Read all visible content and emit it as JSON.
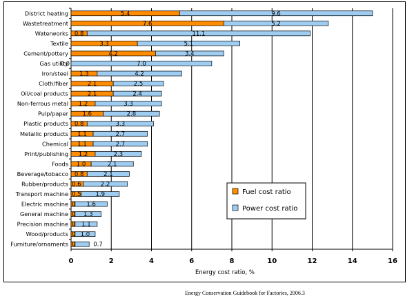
{
  "chart_data": {
    "type": "bar",
    "stacked": true,
    "orientation": "horizontal",
    "categories": [
      "District heating",
      "Wastetreatment",
      "Waterworks",
      "Textile",
      "Cement/pottery",
      "Gas utility",
      "Iron/steel",
      "Cloth/fiber",
      "Oil/coal products",
      "Non-ferrous metal",
      "Pulp/paper",
      "Plastic products",
      "Metallic products",
      "Chemical",
      "Print/publishing",
      "Foods",
      "Beverage/tobacco",
      "Rubber/products",
      "Transport machine",
      "Electric machine",
      "General machine",
      "Precision machine",
      "Wood/products",
      "Furniture/ornaments"
    ],
    "series": [
      {
        "name": "Fuel cost ratio",
        "color": "#ff8c00",
        "values": [
          5.4,
          7.6,
          0.8,
          3.3,
          4.2,
          0.0,
          1.3,
          2.1,
          2.1,
          1.2,
          1.6,
          0.8,
          1.1,
          1.1,
          1.2,
          1.0,
          0.8,
          0.6,
          0.5,
          0.2,
          0.2,
          0.2,
          0.2,
          0.2
        ],
        "labels": [
          "5.4",
          "7.6",
          "0.8",
          "3.3",
          "4.2",
          "0.0",
          "1.3",
          "2.1",
          "2.1",
          "1.2",
          "1.6",
          "0.8",
          "1.1",
          "1.1",
          "1.2",
          "1.0",
          "0.8",
          "0.6",
          "0.5",
          "0.2",
          "0.2",
          "0.2",
          "0.2",
          "0.2"
        ]
      },
      {
        "name": "Power cost ratio",
        "color": "#9fcdf2",
        "values": [
          9.6,
          5.2,
          11.1,
          5.1,
          3.4,
          7.0,
          4.2,
          2.5,
          2.4,
          3.3,
          2.8,
          3.3,
          2.7,
          2.7,
          2.3,
          2.1,
          2.1,
          2.2,
          1.9,
          1.6,
          1.3,
          1.1,
          1.0,
          0.7
        ],
        "labels": [
          "9.6",
          "5.2",
          "11.1",
          "5.1",
          "3.4",
          "7.0",
          "4.2",
          "2.5",
          "2.4",
          "3.3",
          "2.8",
          "3.3",
          "2.7",
          "2.7",
          "2.3",
          "2.1",
          "2.1",
          "2.2",
          "1.9",
          "1.6",
          "1.3",
          "1.1",
          "1.0",
          "0.7"
        ]
      }
    ],
    "xlabel": "Energy cost ratio, %",
    "ylabel": "",
    "xlim": [
      0,
      16
    ],
    "xticks": [
      0,
      2,
      4,
      6,
      8,
      10,
      12,
      14,
      16
    ],
    "xtick_labels": [
      "0",
      "2",
      "4",
      "6",
      "8",
      "10",
      "12",
      "14",
      "16"
    ],
    "grid": "vertical",
    "legend_position": "lower-right"
  },
  "source_note": "Energy Conservation Guidebook for Factories, 2006.3"
}
